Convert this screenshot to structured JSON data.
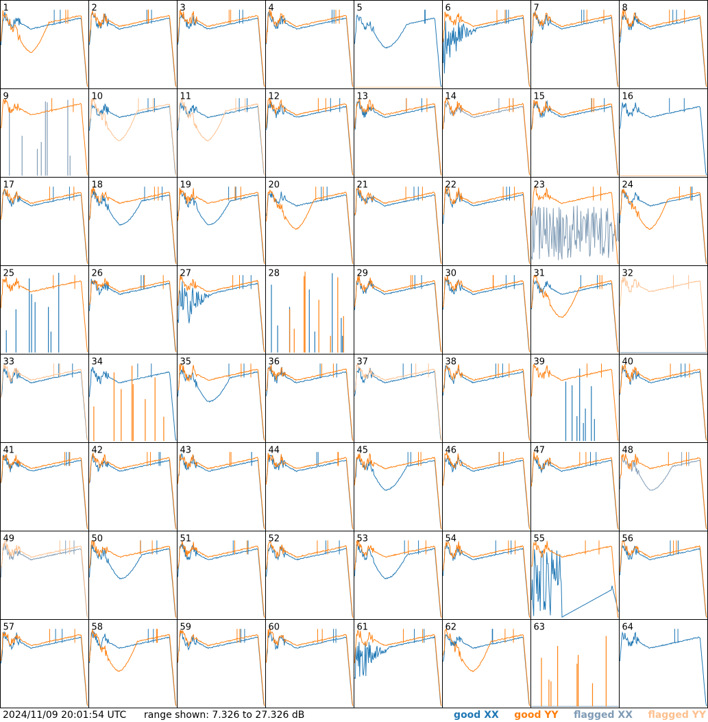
{
  "footer": {
    "timestamp": "2024/11/09 20:01:54 UTC",
    "range_text": "range shown: 7.326 to 27.326 dB",
    "legend": [
      {
        "label": "good XX",
        "color": "#1f77b4"
      },
      {
        "label": "good YY",
        "color": "#ff7f0e"
      },
      {
        "label": "flagged XX",
        "color": "#7f9bb5"
      },
      {
        "label": "flagged YY",
        "color": "#fdc08f"
      }
    ]
  },
  "chart_data": {
    "type": "line",
    "layout": "8x8 small multiples",
    "ylim": [
      7.326,
      27.326
    ],
    "yunit": "dB",
    "colors": {
      "good_xx": "#1f77b4",
      "good_yy": "#ff7f0e",
      "flagged_xx": "#7f9bb5",
      "flagged_yy": "#fdc08f"
    },
    "panels": [
      {
        "label": "1",
        "xx": "good",
        "yy": "good",
        "shape": "yylowdip"
      },
      {
        "label": "2",
        "xx": "good",
        "yy": "good",
        "shape": "normal"
      },
      {
        "label": "3",
        "xx": "good",
        "yy": "good",
        "shape": "normal"
      },
      {
        "label": "4",
        "xx": "good",
        "yy": "good",
        "shape": "normal"
      },
      {
        "label": "5",
        "xx": "good",
        "yy": "flatline",
        "shape": "xxdip"
      },
      {
        "label": "6",
        "xx": "good",
        "yy": "good",
        "shape": "xxnoisy"
      },
      {
        "label": "7",
        "xx": "good",
        "yy": "good",
        "shape": "normal"
      },
      {
        "label": "8",
        "xx": "good",
        "yy": "good",
        "shape": "normal"
      },
      {
        "label": "9",
        "xx": "flagged-spikes",
        "yy": "good",
        "shape": "normal"
      },
      {
        "label": "10",
        "xx": "good",
        "yy": "flagged",
        "shape": "yyflagdip"
      },
      {
        "label": "11",
        "xx": "good",
        "yy": "flagged",
        "shape": "yyflagdip"
      },
      {
        "label": "12",
        "xx": "good",
        "yy": "good",
        "shape": "normal"
      },
      {
        "label": "13",
        "xx": "good",
        "yy": "good",
        "shape": "normal"
      },
      {
        "label": "14",
        "xx": "flagged",
        "yy": "good",
        "shape": "normal"
      },
      {
        "label": "15",
        "xx": "good",
        "yy": "good",
        "shape": "normal"
      },
      {
        "label": "16",
        "xx": "good",
        "yy": "flatline",
        "shape": "normal"
      },
      {
        "label": "17",
        "xx": "good",
        "yy": "good",
        "shape": "normal"
      },
      {
        "label": "18",
        "xx": "good",
        "yy": "good",
        "shape": "xxdip"
      },
      {
        "label": "19",
        "xx": "good",
        "yy": "good",
        "shape": "xxdip"
      },
      {
        "label": "20",
        "xx": "good",
        "yy": "good",
        "shape": "yylowdip"
      },
      {
        "label": "21",
        "xx": "good",
        "yy": "good",
        "shape": "normal"
      },
      {
        "label": "22",
        "xx": "good",
        "yy": "good",
        "shape": "normal"
      },
      {
        "label": "23",
        "xx": "flagged-noise",
        "yy": "good",
        "shape": "normal"
      },
      {
        "label": "24",
        "xx": "good",
        "yy": "good",
        "shape": "yylowdip"
      },
      {
        "label": "25",
        "xx": "spikes",
        "yy": "good",
        "shape": "normal"
      },
      {
        "label": "26",
        "xx": "good",
        "yy": "good",
        "shape": "normal"
      },
      {
        "label": "27",
        "xx": "good",
        "yy": "good",
        "shape": "xxnoisy"
      },
      {
        "label": "28",
        "xx": "spikes",
        "yy": "spikes",
        "shape": "normal"
      },
      {
        "label": "29",
        "xx": "good",
        "yy": "good",
        "shape": "normal"
      },
      {
        "label": "30",
        "xx": "good",
        "yy": "good",
        "shape": "normal"
      },
      {
        "label": "31",
        "xx": "good",
        "yy": "good",
        "shape": "yylowdip"
      },
      {
        "label": "32",
        "xx": "flatline",
        "yy": "flagged",
        "shape": "normal"
      },
      {
        "label": "33",
        "xx": "good",
        "yy": "flagged",
        "shape": "normal"
      },
      {
        "label": "34",
        "xx": "good",
        "yy": "spikes",
        "shape": "normal"
      },
      {
        "label": "35",
        "xx": "good",
        "yy": "good",
        "shape": "xxdip"
      },
      {
        "label": "36",
        "xx": "good",
        "yy": "good",
        "shape": "normal"
      },
      {
        "label": "37",
        "xx": "good",
        "yy": "flagged",
        "shape": "normal"
      },
      {
        "label": "38",
        "xx": "good",
        "yy": "good",
        "shape": "normal"
      },
      {
        "label": "39",
        "xx": "spikes",
        "yy": "good",
        "shape": "normal"
      },
      {
        "label": "40",
        "xx": "good",
        "yy": "good",
        "shape": "normal"
      },
      {
        "label": "41",
        "xx": "good",
        "yy": "good",
        "shape": "normal"
      },
      {
        "label": "42",
        "xx": "good",
        "yy": "good",
        "shape": "normal"
      },
      {
        "label": "43",
        "xx": "good",
        "yy": "good",
        "shape": "normal"
      },
      {
        "label": "44",
        "xx": "good",
        "yy": "good",
        "shape": "normal"
      },
      {
        "label": "45",
        "xx": "good",
        "yy": "good",
        "shape": "xxdip"
      },
      {
        "label": "46",
        "xx": "good",
        "yy": "good",
        "shape": "normal"
      },
      {
        "label": "47",
        "xx": "good",
        "yy": "good",
        "shape": "normal"
      },
      {
        "label": "48",
        "xx": "flagged",
        "yy": "good",
        "shape": "xxdip"
      },
      {
        "label": "49",
        "xx": "flagged",
        "yy": "flagged",
        "shape": "normal"
      },
      {
        "label": "50",
        "xx": "good",
        "yy": "good",
        "shape": "xxdip"
      },
      {
        "label": "51",
        "xx": "good",
        "yy": "good",
        "shape": "normal"
      },
      {
        "label": "52",
        "xx": "good",
        "yy": "good",
        "shape": "normal"
      },
      {
        "label": "53",
        "xx": "good",
        "yy": "good",
        "shape": "xxdip"
      },
      {
        "label": "54",
        "xx": "good",
        "yy": "good",
        "shape": "normal"
      },
      {
        "label": "55",
        "xx": "bad-ramp",
        "yy": "good",
        "shape": "normal"
      },
      {
        "label": "56",
        "xx": "good",
        "yy": "good",
        "shape": "normal"
      },
      {
        "label": "57",
        "xx": "good",
        "yy": "good",
        "shape": "normal"
      },
      {
        "label": "58",
        "xx": "good",
        "yy": "good",
        "shape": "yylowdip"
      },
      {
        "label": "59",
        "xx": "good",
        "yy": "good",
        "shape": "normal"
      },
      {
        "label": "60",
        "xx": "good",
        "yy": "good",
        "shape": "normal"
      },
      {
        "label": "61",
        "xx": "good",
        "yy": "good",
        "shape": "xxnoisy"
      },
      {
        "label": "62",
        "xx": "good",
        "yy": "good",
        "shape": "yylowdip"
      },
      {
        "label": "63",
        "xx": "flatline",
        "yy": "spikes",
        "shape": "normal"
      },
      {
        "label": "64",
        "xx": "good",
        "yy": "none",
        "shape": "normal"
      }
    ]
  }
}
